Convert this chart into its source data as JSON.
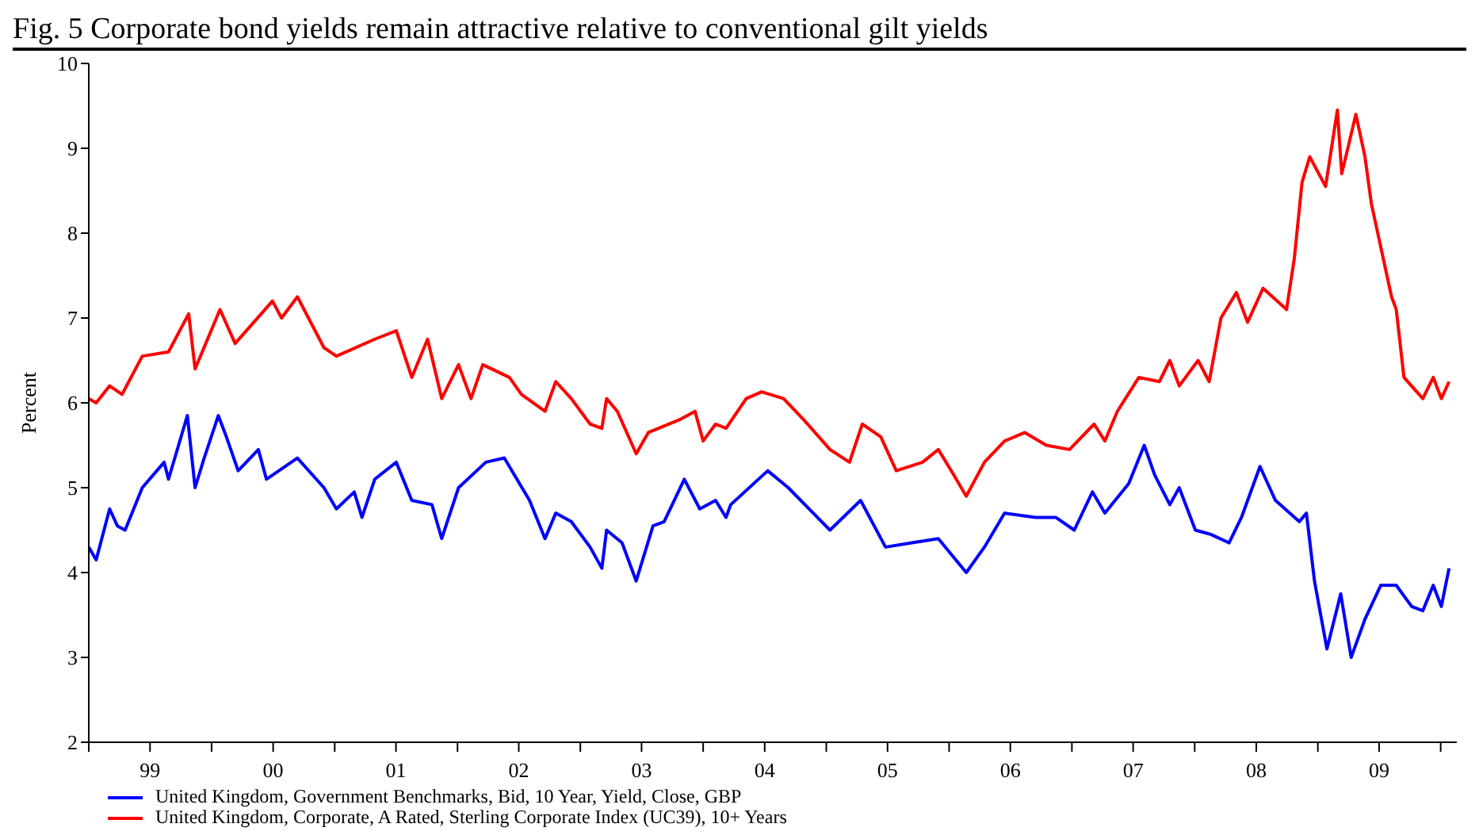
{
  "chart_data": {
    "type": "line",
    "title": "Fig. 5 Corporate bond yields remain attractive relative to conventional gilt yields",
    "ylabel": "Percent",
    "xlim": [
      "1999-01-01",
      "2010-02-18"
    ],
    "xticks": [
      {
        "value": "1999-01-01",
        "label": null
      },
      {
        "value": "1999-07-02",
        "label": "99"
      },
      {
        "value": "2000-01-01",
        "label": null
      },
      {
        "value": "2000-07-02",
        "label": "00"
      },
      {
        "value": "2001-01-01",
        "label": null
      },
      {
        "value": "2001-07-02",
        "label": "01"
      },
      {
        "value": "2002-01-01",
        "label": null
      },
      {
        "value": "2002-07-02",
        "label": "02"
      },
      {
        "value": "2003-01-01",
        "label": null
      },
      {
        "value": "2003-07-02",
        "label": "03"
      },
      {
        "value": "2004-01-01",
        "label": null
      },
      {
        "value": "2004-07-02",
        "label": "04"
      },
      {
        "value": "2005-01-01",
        "label": null
      },
      {
        "value": "2005-07-02",
        "label": "05"
      },
      {
        "value": "2006-01-01",
        "label": null
      },
      {
        "value": "2006-07-02",
        "label": "06"
      },
      {
        "value": "2007-01-01",
        "label": null
      },
      {
        "value": "2007-07-02",
        "label": "07"
      },
      {
        "value": "2008-01-01",
        "label": null
      },
      {
        "value": "2008-07-02",
        "label": "08"
      },
      {
        "value": "2009-01-01",
        "label": null
      },
      {
        "value": "2009-07-02",
        "label": "09"
      },
      {
        "value": "2010-01-01",
        "label": null
      }
    ],
    "ylim": [
      2,
      10
    ],
    "yticks": [
      2,
      3,
      4,
      5,
      6,
      7,
      8,
      9,
      10
    ],
    "grid": false,
    "legend": "bottom",
    "marker": "none",
    "line_style": "solid",
    "series": [
      {
        "name": "United Kingdom, Government Benchmarks, Bid, 10 Year, Yield, Close, GBP",
        "color": "#0000ff",
        "x": [
          "1999-01-01",
          "1999-01-23",
          "1999-03-04",
          "1999-03-27",
          "1999-04-19",
          "1999-06-09",
          "1999-08-13",
          "1999-08-26",
          "1999-10-21",
          "1999-11-13",
          "1999-12-10",
          "2000-01-21",
          "2000-02-14",
          "2000-03-20",
          "2000-05-19",
          "2000-06-12",
          "2000-09-12",
          "2000-11-30",
          "2001-01-06",
          "2001-02-28",
          "2001-03-23",
          "2001-04-30",
          "2001-07-03",
          "2001-08-18",
          "2001-10-17",
          "2001-11-15",
          "2002-01-04",
          "2002-03-26",
          "2002-05-20",
          "2002-08-03",
          "2002-09-18",
          "2002-10-20",
          "2002-12-05",
          "2003-01-30",
          "2003-03-06",
          "2003-03-20",
          "2003-05-05",
          "2003-06-16",
          "2003-08-05",
          "2003-09-07",
          "2003-11-06",
          "2003-12-22",
          "2004-02-07",
          "2004-03-09",
          "2004-03-23",
          "2004-07-11",
          "2004-09-10",
          "2005-01-12",
          "2005-04-13",
          "2005-06-26",
          "2005-09-12",
          "2005-11-30",
          "2006-02-21",
          "2006-04-16",
          "2006-06-15",
          "2006-09-15",
          "2006-11-14",
          "2007-01-08",
          "2007-03-03",
          "2007-04-09",
          "2007-06-19",
          "2007-08-04",
          "2007-09-04",
          "2007-10-19",
          "2007-11-16",
          "2008-01-03",
          "2008-02-18",
          "2008-04-12",
          "2008-05-19",
          "2008-07-13",
          "2008-08-28",
          "2008-11-07",
          "2008-11-28",
          "2008-12-22",
          "2009-01-28",
          "2009-03-10",
          "2009-04-10",
          "2009-05-21",
          "2009-07-07",
          "2009-08-22",
          "2009-10-07",
          "2009-11-09",
          "2009-12-10",
          "2010-01-03",
          "2010-01-26"
        ],
        "values": [
          4.3,
          4.15,
          4.75,
          4.55,
          4.5,
          5.0,
          5.3,
          5.1,
          5.85,
          5.0,
          5.35,
          5.85,
          5.6,
          5.2,
          5.45,
          5.1,
          5.35,
          5.0,
          4.75,
          4.95,
          4.65,
          5.1,
          5.3,
          4.85,
          4.8,
          4.4,
          5.0,
          5.3,
          5.35,
          4.85,
          4.4,
          4.7,
          4.6,
          4.3,
          4.05,
          4.5,
          4.35,
          3.9,
          4.55,
          4.6,
          5.1,
          4.75,
          4.85,
          4.65,
          4.8,
          5.2,
          5.0,
          4.5,
          4.85,
          4.3,
          4.35,
          4.4,
          4.0,
          4.3,
          4.7,
          4.65,
          4.65,
          4.5,
          4.95,
          4.7,
          5.05,
          5.5,
          5.15,
          4.8,
          5.0,
          4.5,
          4.45,
          4.35,
          4.65,
          5.25,
          4.85,
          4.6,
          4.7,
          3.9,
          3.1,
          3.75,
          3.0,
          3.45,
          3.85,
          3.85,
          3.6,
          3.55,
          3.85,
          3.6,
          4.05
        ]
      },
      {
        "name": "United Kingdom, Corporate, A Rated, Sterling Corporate Index (UC39), 10+ Years",
        "color": "#ff0000",
        "x": [
          "1999-01-01",
          "1999-01-23",
          "1999-03-04",
          "1999-04-10",
          "1999-06-09",
          "1999-08-26",
          "1999-10-25",
          "1999-11-13",
          "2000-01-26",
          "2000-03-11",
          "2000-06-30",
          "2000-07-27",
          "2000-09-12",
          "2000-11-30",
          "2001-01-06",
          "2001-04-30",
          "2001-07-03",
          "2001-08-18",
          "2001-10-04",
          "2001-11-15",
          "2002-01-04",
          "2002-02-10",
          "2002-03-17",
          "2002-06-04",
          "2002-07-10",
          "2002-09-18",
          "2002-10-20",
          "2002-12-05",
          "2003-01-30",
          "2003-03-06",
          "2003-03-20",
          "2003-04-21",
          "2003-06-16",
          "2003-07-22",
          "2003-10-22",
          "2003-12-08",
          "2004-01-01",
          "2004-02-07",
          "2004-03-09",
          "2004-05-08",
          "2004-06-23",
          "2004-08-27",
          "2004-10-26",
          "2005-01-12",
          "2005-03-11",
          "2005-04-18",
          "2005-06-12",
          "2005-07-28",
          "2005-10-14",
          "2005-11-30",
          "2006-01-15",
          "2006-02-21",
          "2006-04-16",
          "2006-06-15",
          "2006-08-14",
          "2006-10-17",
          "2006-12-25",
          "2007-03-08",
          "2007-04-09",
          "2007-05-16",
          "2007-07-19",
          "2007-09-18",
          "2007-10-19",
          "2007-11-16",
          "2008-01-11",
          "2008-02-13",
          "2008-03-19",
          "2008-05-04",
          "2008-06-06",
          "2008-07-22",
          "2008-09-30",
          "2008-10-23",
          "2008-11-15",
          "2008-12-08",
          "2009-01-24",
          "2009-02-28",
          "2009-03-13",
          "2009-04-24",
          "2009-05-21",
          "2009-06-09",
          "2009-08-08",
          "2009-08-22",
          "2009-09-14",
          "2009-11-09",
          "2009-12-10",
          "2010-01-03",
          "2010-01-26"
        ],
        "values": [
          6.05,
          6.0,
          6.2,
          6.1,
          6.55,
          6.6,
          7.05,
          6.4,
          7.1,
          6.7,
          7.2,
          7.0,
          7.25,
          6.65,
          6.55,
          6.75,
          6.85,
          6.3,
          6.75,
          6.05,
          6.45,
          6.05,
          6.45,
          6.3,
          6.1,
          5.9,
          6.25,
          6.05,
          5.75,
          5.7,
          6.05,
          5.9,
          5.4,
          5.65,
          5.8,
          5.9,
          5.55,
          5.75,
          5.7,
          6.05,
          6.13,
          6.05,
          5.8,
          5.45,
          5.3,
          5.75,
          5.6,
          5.2,
          5.3,
          5.45,
          5.15,
          4.9,
          5.3,
          5.55,
          5.65,
          5.5,
          5.45,
          5.75,
          5.55,
          5.9,
          6.3,
          6.25,
          6.5,
          6.2,
          6.5,
          6.25,
          7.0,
          7.3,
          6.95,
          7.35,
          7.1,
          7.7,
          8.6,
          8.9,
          8.55,
          9.45,
          8.7,
          9.4,
          8.9,
          8.35,
          7.25,
          7.1,
          6.3,
          6.05,
          6.3,
          6.05,
          6.25
        ]
      }
    ]
  }
}
